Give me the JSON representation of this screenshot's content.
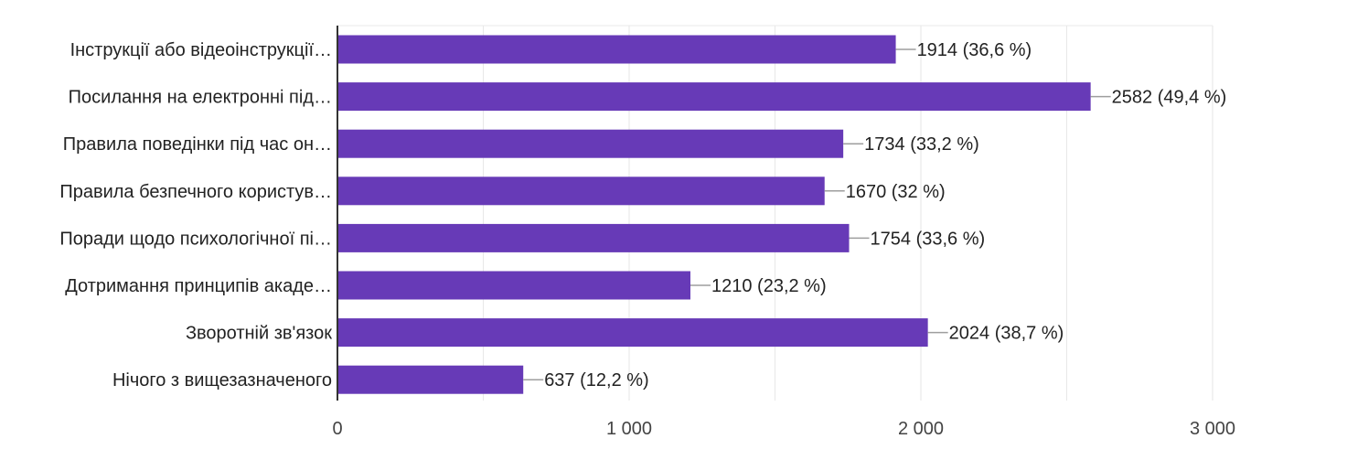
{
  "colors": {
    "bar": "#673ab7",
    "grid": "#e8e8e8",
    "axis": "#333333",
    "text": "#222222",
    "leader": "#9e9e9e"
  },
  "chart_data": {
    "type": "bar",
    "orientation": "horizontal",
    "title": "",
    "xlabel": "",
    "ylabel": "",
    "xlim": [
      0,
      3000
    ],
    "x_ticks": [
      {
        "value": 0,
        "label": "0"
      },
      {
        "value": 1000,
        "label": "1 000"
      },
      {
        "value": 2000,
        "label": "2 000"
      },
      {
        "value": 3000,
        "label": "3 000"
      }
    ],
    "grid": true,
    "categories": [
      "Інструкції або відеоінструкції…",
      "Посилання на електронні під…",
      "Правила поведінки під час он…",
      "Правила безпечного користув…",
      "Поради щодо психологічної пі…",
      "Дотримання принципів акаде…",
      "Зворотній зв'язок",
      "Нічого з вищезазначеного"
    ],
    "values": [
      1914,
      2582,
      1734,
      1670,
      1754,
      1210,
      2024,
      637
    ],
    "data_labels": [
      "1914 (36,6 %)",
      "2582 (49,4 %)",
      "1734 (33,2 %)",
      "1670 (32 %)",
      "1754 (33,6 %)",
      "1210 (23,2 %)",
      "2024 (38,7 %)",
      "637 (12,2 %)"
    ]
  }
}
